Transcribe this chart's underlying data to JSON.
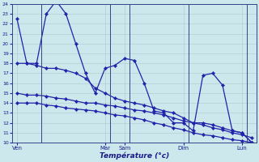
{
  "xlabel": "Température (°c)",
  "background_color": "#cce8ec",
  "grid_color": "#aac8cc",
  "line_color": "#2222aa",
  "ylim": [
    10,
    24
  ],
  "yticks": [
    10,
    11,
    12,
    13,
    14,
    15,
    16,
    17,
    18,
    19,
    20,
    21,
    22,
    23,
    24
  ],
  "series1": [
    22.5,
    18.0,
    18.0,
    23.0,
    24.3,
    23.0,
    20.0,
    17.0,
    15.0,
    17.5,
    17.8,
    18.5,
    18.3,
    16.0,
    13.2,
    13.0,
    12.0,
    12.0,
    11.2,
    16.8,
    17.0,
    15.8,
    11.2,
    11.0,
    10.0
  ],
  "series2": [
    18.0,
    18.0,
    17.8,
    17.5,
    17.5,
    17.3,
    17.0,
    16.5,
    15.5,
    15.0,
    14.5,
    14.2,
    14.0,
    13.8,
    13.5,
    13.2,
    13.0,
    12.5,
    12.0,
    12.0,
    11.8,
    11.5,
    11.2,
    11.0,
    10.0
  ],
  "series3": [
    15.0,
    14.8,
    14.8,
    14.7,
    14.5,
    14.4,
    14.2,
    14.0,
    14.0,
    13.8,
    13.7,
    13.5,
    13.3,
    13.2,
    13.0,
    12.8,
    12.5,
    12.2,
    12.0,
    11.8,
    11.5,
    11.3,
    11.0,
    10.8,
    10.5
  ],
  "series4": [
    14.0,
    14.0,
    14.0,
    13.8,
    13.7,
    13.5,
    13.4,
    13.3,
    13.2,
    13.0,
    12.8,
    12.7,
    12.5,
    12.3,
    12.0,
    11.8,
    11.5,
    11.3,
    11.0,
    10.8,
    10.7,
    10.5,
    10.3,
    10.2,
    10.0
  ],
  "n": 25,
  "xtick_pos": [
    0,
    9,
    11,
    17,
    23
  ],
  "xtick_labels": [
    "Ven",
    "Mar",
    "Sam",
    "Dim",
    "Lun"
  ],
  "vline_pos": [
    2.5,
    9.5,
    11.5,
    17.5,
    23.5
  ],
  "figsize": [
    3.2,
    2.0
  ],
  "dpi": 100
}
